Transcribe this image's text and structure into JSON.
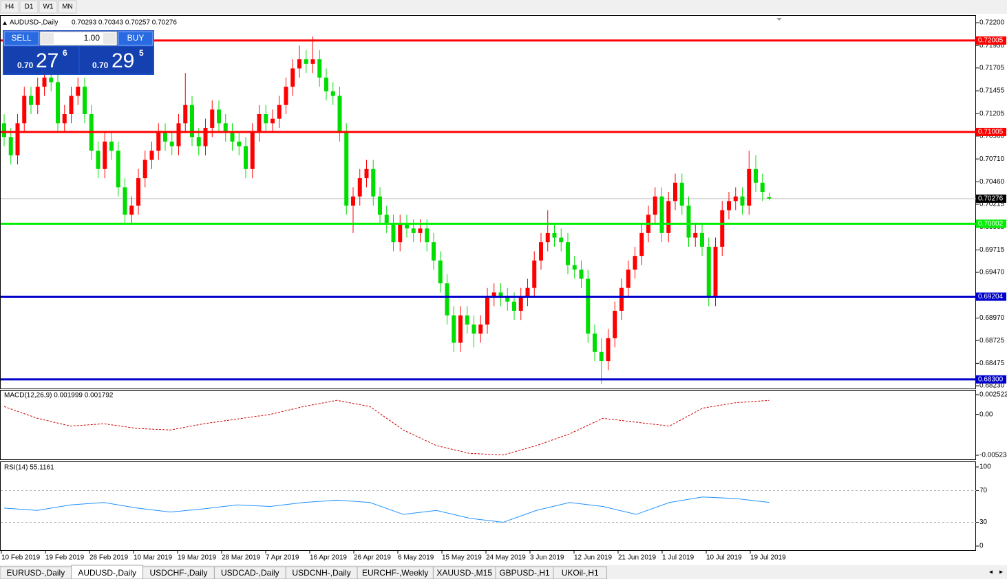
{
  "toolbar": {
    "timeframes": [
      "H4",
      "D1",
      "W1",
      "MN"
    ]
  },
  "trade_panel": {
    "sell_label": "SELL",
    "buy_label": "BUY",
    "lots": "1.00",
    "sell_price": {
      "prefix": "0.70",
      "big": "27",
      "small": "6"
    },
    "buy_price": {
      "prefix": "0.70",
      "big": "29",
      "small": "5"
    }
  },
  "chart_data": [
    {
      "type": "candlestick",
      "title": "AUDUSD-,Daily",
      "ohlc_text": "0.70293 0.70343 0.70257 0.70276",
      "bull_color": "#ff0000",
      "bear_color": "#00dd00",
      "ylim": [
        0.6823,
        0.722
      ],
      "yticks": [
        {
          "value": 0.722,
          "label": "0.72200"
        },
        {
          "value": 0.7195,
          "label": "0.71950"
        },
        0.71705,
        0.71455,
        0.71205,
        {
          "value": 0.7096,
          "label": "0.70960"
        },
        {
          "value": 0.7071,
          "label": "0.70710"
        },
        {
          "value": 0.7046,
          "label": "0.70460"
        },
        0.70215,
        0.69965,
        0.69715,
        {
          "value": 0.6947,
          "label": "0.69470"
        },
        {
          "value": 0.6897,
          "label": "0.68970"
        },
        0.68725,
        0.68475,
        {
          "value": 0.6823,
          "label": "0.68230"
        }
      ],
      "levels": [
        {
          "value": 0.72005,
          "color": "#ff0000"
        },
        {
          "value": 0.71005,
          "color": "#ff0000"
        },
        {
          "value": 0.70002,
          "color": "#00ee00"
        },
        {
          "value": 0.69204,
          "color": "#0000cc"
        },
        {
          "value": 0.683,
          "label": "0.68300",
          "color": "#0000cc"
        }
      ],
      "current_price": 0.70276,
      "x_labels": [
        "10 Feb 2019",
        "19 Feb 2019",
        "28 Feb 2019",
        "10 Mar 2019",
        "19 Mar 2019",
        "28 Mar 2019",
        "7 Apr 2019",
        "16 Apr 2019",
        "26 Apr 2019",
        "6 May 2019",
        "15 May 2019",
        "24 May 2019",
        "3 Jun 2019",
        "12 Jun 2019",
        "21 Jun 2019",
        "1 Jul 2019",
        "10 Jul 2019",
        "19 Jul 2019"
      ],
      "candles": [
        [
          0.711,
          0.712,
          0.7085,
          0.7095
        ],
        [
          0.7095,
          0.7105,
          0.7065,
          0.7075
        ],
        [
          0.7075,
          0.712,
          0.7065,
          0.711
        ],
        [
          0.711,
          0.715,
          0.71,
          0.714
        ],
        [
          0.714,
          0.715,
          0.712,
          0.713
        ],
        [
          0.713,
          0.716,
          0.712,
          0.715
        ],
        [
          0.715,
          0.717,
          0.714,
          0.716
        ],
        [
          0.716,
          0.717,
          0.7145,
          0.7155
        ],
        [
          0.7155,
          0.7165,
          0.71,
          0.711
        ],
        [
          0.711,
          0.713,
          0.71,
          0.712
        ],
        [
          0.712,
          0.715,
          0.711,
          0.714
        ],
        [
          0.714,
          0.716,
          0.713,
          0.715
        ],
        [
          0.715,
          0.716,
          0.711,
          0.712
        ],
        [
          0.712,
          0.713,
          0.707,
          0.708
        ],
        [
          0.708,
          0.709,
          0.705,
          0.706
        ],
        [
          0.706,
          0.71,
          0.705,
          0.709
        ],
        [
          0.709,
          0.71,
          0.707,
          0.708
        ],
        [
          0.708,
          0.709,
          0.703,
          0.704
        ],
        [
          0.704,
          0.705,
          0.7,
          0.701
        ],
        [
          0.701,
          0.703,
          0.7,
          0.702
        ],
        [
          0.702,
          0.706,
          0.701,
          0.705
        ],
        [
          0.705,
          0.708,
          0.704,
          0.707
        ],
        [
          0.707,
          0.709,
          0.706,
          0.708
        ],
        [
          0.708,
          0.711,
          0.707,
          0.71
        ],
        [
          0.71,
          0.711,
          0.708,
          0.709
        ],
        [
          0.709,
          0.71,
          0.7075,
          0.7085
        ],
        [
          0.7085,
          0.712,
          0.7075,
          0.711
        ],
        [
          0.711,
          0.7165,
          0.71,
          0.713
        ],
        [
          0.713,
          0.714,
          0.7085,
          0.7095
        ],
        [
          0.7095,
          0.7105,
          0.7075,
          0.7085
        ],
        [
          0.7085,
          0.7115,
          0.7075,
          0.7105
        ],
        [
          0.7105,
          0.7135,
          0.7095,
          0.7125
        ],
        [
          0.7125,
          0.7135,
          0.71,
          0.711
        ],
        [
          0.711,
          0.712,
          0.709,
          0.71
        ],
        [
          0.71,
          0.711,
          0.708,
          0.709
        ],
        [
          0.709,
          0.71,
          0.7075,
          0.7085
        ],
        [
          0.7085,
          0.7095,
          0.705,
          0.706
        ],
        [
          0.706,
          0.711,
          0.705,
          0.71
        ],
        [
          0.71,
          0.713,
          0.709,
          0.712
        ],
        [
          0.712,
          0.713,
          0.71,
          0.711
        ],
        [
          0.711,
          0.7125,
          0.71,
          0.7115
        ],
        [
          0.7115,
          0.714,
          0.7105,
          0.713
        ],
        [
          0.713,
          0.716,
          0.712,
          0.715
        ],
        [
          0.715,
          0.718,
          0.714,
          0.717
        ],
        [
          0.717,
          0.7195,
          0.716,
          0.718
        ],
        [
          0.718,
          0.719,
          0.7165,
          0.7175
        ],
        [
          0.7175,
          0.7205,
          0.7165,
          0.718
        ],
        [
          0.718,
          0.719,
          0.715,
          0.716
        ],
        [
          0.716,
          0.717,
          0.7135,
          0.7145
        ],
        [
          0.7145,
          0.7155,
          0.713,
          0.714
        ],
        [
          0.714,
          0.715,
          0.709,
          0.71
        ],
        [
          0.71,
          0.711,
          0.701,
          0.702
        ],
        [
          0.702,
          0.704,
          0.699,
          0.703
        ],
        [
          0.703,
          0.706,
          0.702,
          0.705
        ],
        [
          0.705,
          0.707,
          0.704,
          0.706
        ],
        [
          0.706,
          0.707,
          0.702,
          0.703
        ],
        [
          0.703,
          0.704,
          0.7,
          0.701
        ],
        [
          0.701,
          0.702,
          0.699,
          0.7
        ],
        [
          0.7,
          0.701,
          0.697,
          0.698
        ],
        [
          0.698,
          0.701,
          0.697,
          0.7
        ],
        [
          0.7,
          0.701,
          0.6985,
          0.6995
        ],
        [
          0.6995,
          0.7005,
          0.698,
          0.699
        ],
        [
          0.699,
          0.7005,
          0.698,
          0.6995
        ],
        [
          0.6995,
          0.7005,
          0.697,
          0.698
        ],
        [
          0.698,
          0.699,
          0.695,
          0.696
        ],
        [
          0.696,
          0.697,
          0.6925,
          0.6935
        ],
        [
          0.6935,
          0.6945,
          0.689,
          0.69
        ],
        [
          0.69,
          0.691,
          0.686,
          0.687
        ],
        [
          0.687,
          0.691,
          0.686,
          0.69
        ],
        [
          0.69,
          0.691,
          0.688,
          0.689
        ],
        [
          0.689,
          0.69,
          0.6865,
          0.688
        ],
        [
          0.688,
          0.69,
          0.687,
          0.689
        ],
        [
          0.689,
          0.693,
          0.688,
          0.692
        ],
        [
          0.692,
          0.6935,
          0.691,
          0.6925
        ],
        [
          0.6925,
          0.6935,
          0.691,
          0.692
        ],
        [
          0.692,
          0.693,
          0.6905,
          0.6915
        ],
        [
          0.6915,
          0.6925,
          0.6895,
          0.6905
        ],
        [
          0.6905,
          0.693,
          0.6895,
          0.692
        ],
        [
          0.692,
          0.694,
          0.691,
          0.693
        ],
        [
          0.693,
          0.697,
          0.692,
          0.696
        ],
        [
          0.696,
          0.699,
          0.695,
          0.698
        ],
        [
          0.698,
          0.7015,
          0.697,
          0.699
        ],
        [
          0.699,
          0.7,
          0.6975,
          0.6985
        ],
        [
          0.6985,
          0.6995,
          0.697,
          0.698
        ],
        [
          0.698,
          0.699,
          0.6945,
          0.6955
        ],
        [
          0.6955,
          0.6965,
          0.694,
          0.695
        ],
        [
          0.695,
          0.696,
          0.693,
          0.694
        ],
        [
          0.694,
          0.695,
          0.687,
          0.688
        ],
        [
          0.688,
          0.689,
          0.685,
          0.686
        ],
        [
          0.686,
          0.6875,
          0.6825,
          0.685
        ],
        [
          0.685,
          0.6885,
          0.684,
          0.6875
        ],
        [
          0.6875,
          0.6915,
          0.6865,
          0.6905
        ],
        [
          0.6905,
          0.694,
          0.6895,
          0.693
        ],
        [
          0.693,
          0.696,
          0.692,
          0.695
        ],
        [
          0.695,
          0.6975,
          0.694,
          0.6965
        ],
        [
          0.6965,
          0.7,
          0.6955,
          0.699
        ],
        [
          0.699,
          0.702,
          0.698,
          0.701
        ],
        [
          0.701,
          0.704,
          0.7,
          0.703
        ],
        [
          0.703,
          0.704,
          0.698,
          0.699
        ],
        [
          0.699,
          0.7035,
          0.698,
          0.7025
        ],
        [
          0.7025,
          0.7055,
          0.7015,
          0.7045
        ],
        [
          0.7045,
          0.7055,
          0.701,
          0.702
        ],
        [
          0.702,
          0.703,
          0.6975,
          0.6985
        ],
        [
          0.6985,
          0.7,
          0.6975,
          0.699
        ],
        [
          0.699,
          0.7,
          0.6965,
          0.6975
        ],
        [
          0.6975,
          0.6985,
          0.691,
          0.692
        ],
        [
          0.692,
          0.6985,
          0.691,
          0.6975
        ],
        [
          0.6975,
          0.7025,
          0.6965,
          0.7015
        ],
        [
          0.7015,
          0.7035,
          0.7005,
          0.7025
        ],
        [
          0.7025,
          0.704,
          0.7015,
          0.703
        ],
        [
          0.703,
          0.704,
          0.701,
          0.702
        ],
        [
          0.702,
          0.708,
          0.701,
          0.706
        ],
        [
          0.706,
          0.7075,
          0.7035,
          0.7045
        ],
        [
          0.7045,
          0.7055,
          0.7025,
          0.7035
        ],
        [
          0.70293,
          0.70343,
          0.70257,
          0.70276
        ]
      ]
    },
    {
      "type": "line",
      "title": "MACD(12,26,9) 0.001999 0.001792",
      "color": "#cc0000",
      "dashed": true,
      "ylim": [
        -0.00576,
        0.00305
      ],
      "yticks": [
        0.002522,
        {
          "value": 0,
          "label": "0.00"
        },
        -0.005234
      ],
      "values": [
        0.001,
        -0.0005,
        -0.0015,
        -0.0012,
        -0.0018,
        -0.002,
        -0.0012,
        -0.0006,
        0,
        0.001,
        0.0018,
        0.001,
        -0.002,
        -0.004,
        -0.005,
        -0.0052,
        -0.004,
        -0.0025,
        -0.0005,
        -0.001,
        -0.0015,
        0.0008,
        0.0015,
        0.001792
      ]
    },
    {
      "type": "line",
      "title": "RSI(14) 55.1161",
      "color": "#1e90ff",
      "dashed": false,
      "ylim": [
        -4.3,
        106.1
      ],
      "yticks": [
        100,
        70,
        30,
        0
      ],
      "values": [
        48,
        45,
        52,
        55,
        48,
        43,
        47,
        52,
        50,
        55,
        58,
        55,
        40,
        45,
        35,
        30,
        45,
        55,
        50,
        40,
        55,
        62,
        60,
        55.1161
      ]
    }
  ],
  "tabs": {
    "active": 1,
    "items": [
      "EURUSD-,Daily",
      "AUDUSD-,Daily",
      "USDCHF-,Daily",
      "USDCAD-,Daily",
      "USDCNH-,Daily",
      "EURCHF-,Weekly",
      "XAUUSD-,M15",
      "GBPUSD-,H1",
      "UKOil-,H1"
    ]
  }
}
